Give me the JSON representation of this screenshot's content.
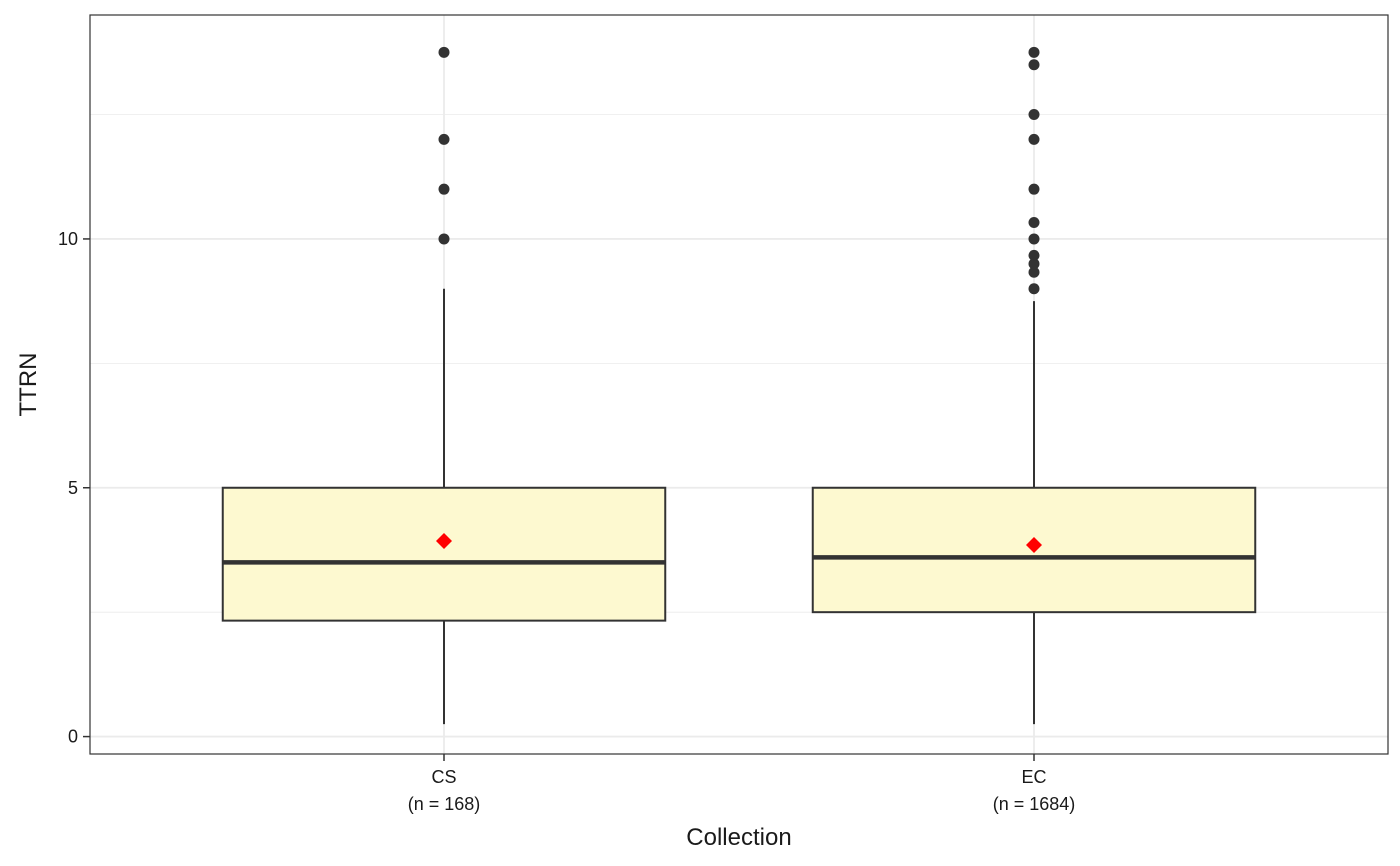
{
  "chart_data": {
    "type": "boxplot",
    "xlabel": "Collection",
    "ylabel": "TTRN",
    "ylim": [
      -0.35,
      14.5
    ],
    "yticks": [
      0,
      5,
      10
    ],
    "grid": true,
    "categories": [
      {
        "name": "CS",
        "n_label": "(n = 168)"
      },
      {
        "name": "EC",
        "n_label": "(n = 1684)"
      }
    ],
    "boxes": [
      {
        "category": "CS",
        "whisker_low": 0.25,
        "q1": 2.33,
        "median": 3.5,
        "q3": 5.0,
        "whisker_high": 9.0,
        "mean": 3.93,
        "outliers": [
          10.0,
          11.0,
          12.0,
          13.75
        ]
      },
      {
        "category": "EC",
        "whisker_low": 0.25,
        "q1": 2.5,
        "median": 3.6,
        "q3": 5.0,
        "whisker_high": 8.75,
        "mean": 3.85,
        "outliers": [
          9.0,
          9.33,
          9.5,
          9.67,
          10.0,
          10.33,
          11.0,
          12.0,
          12.5,
          13.5,
          13.75
        ]
      }
    ],
    "colors": {
      "box_fill": "#fdf9d0",
      "box_stroke": "#333333",
      "outlier": "#333333",
      "mean_marker": "#ff0000",
      "grid": "#ebebeb"
    }
  }
}
